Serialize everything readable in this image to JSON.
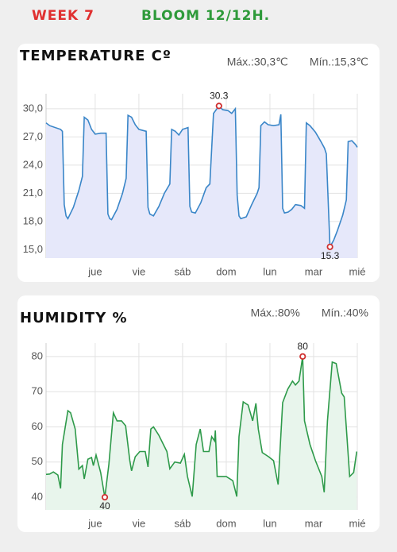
{
  "header": {
    "week": "WEEK 7",
    "stage": "BLOOM 12/12H."
  },
  "chart_data": [
    {
      "type": "line",
      "title": "TEMPERATURE Cº",
      "max_text": "Máx.:30,3℃",
      "min_text": "Mín.:15,3℃",
      "color": "#3a86c8",
      "fill_color": "#e6e8fa",
      "grid": true,
      "xlim": [
        0,
        171
      ],
      "xticks": [
        {
          "value": 27,
          "label": "jue"
        },
        {
          "value": 51,
          "label": "vie"
        },
        {
          "value": 75,
          "label": "sáb"
        },
        {
          "value": 99,
          "label": "dom"
        },
        {
          "value": 123,
          "label": "lun"
        },
        {
          "value": 147,
          "label": "mar"
        },
        {
          "value": 171,
          "label": "mié"
        }
      ],
      "ylim": [
        14.1,
        31.6
      ],
      "yticks": [
        {
          "value": 15,
          "label": "15,0"
        },
        {
          "value": 18,
          "label": "18,0"
        },
        {
          "value": 21,
          "label": "21,0"
        },
        {
          "value": 24,
          "label": "24,0"
        },
        {
          "value": 27,
          "label": "27,0"
        },
        {
          "value": 30,
          "label": "30,0"
        }
      ],
      "x": [
        0,
        2,
        8,
        9,
        10,
        11,
        12,
        15,
        18,
        20,
        21,
        23,
        25,
        27,
        30,
        33,
        34,
        35,
        36,
        39,
        42,
        44,
        45,
        47,
        49,
        51,
        55,
        56,
        57,
        59,
        62,
        65,
        68,
        69,
        71,
        73,
        75,
        78,
        79,
        80,
        82,
        85,
        88,
        90,
        92,
        95,
        97,
        100,
        102,
        104,
        105,
        106,
        107,
        110,
        113,
        116,
        117,
        118,
        120,
        122,
        125,
        128,
        129,
        130,
        131,
        133,
        135,
        137,
        140,
        142,
        143,
        145,
        148,
        151,
        153,
        154,
        156,
        158,
        160,
        163,
        165,
        166,
        168,
        170,
        171
      ],
      "values": [
        28.5,
        28.2,
        27.8,
        27.6,
        19.8,
        18.6,
        18.3,
        19.5,
        21.3,
        22.8,
        29.1,
        28.8,
        27.8,
        27.3,
        27.4,
        27.4,
        18.8,
        18.3,
        18.2,
        19.3,
        21.0,
        22.6,
        29.3,
        29.1,
        28.3,
        27.8,
        27.6,
        19.5,
        18.8,
        18.6,
        19.6,
        21.0,
        22.0,
        27.8,
        27.6,
        27.2,
        27.8,
        28.0,
        19.6,
        19.0,
        18.9,
        20.0,
        21.6,
        22.0,
        29.5,
        30.3,
        29.9,
        29.8,
        29.5,
        30.0,
        20.8,
        18.6,
        18.3,
        18.5,
        19.8,
        21.0,
        21.6,
        28.2,
        28.6,
        28.3,
        28.2,
        28.3,
        29.4,
        19.4,
        18.9,
        19.0,
        19.3,
        19.8,
        19.7,
        19.4,
        28.5,
        28.2,
        27.5,
        26.5,
        25.8,
        25.2,
        15.3,
        16.0,
        17.0,
        18.7,
        20.3,
        26.5,
        26.6,
        26.2,
        25.9
      ],
      "markers": [
        {
          "x": 95,
          "y": 30.3
        },
        {
          "x": 156,
          "y": 15.3
        }
      ]
    },
    {
      "type": "line",
      "title": "HUMIDITY %",
      "max_text": "Máx.:80%",
      "min_text": "Mín.:40%",
      "color": "#2e9a4a",
      "fill_color": "#e8f5ec",
      "grid": true,
      "xlim": [
        0,
        171
      ],
      "xticks": [
        {
          "value": 27,
          "label": "jue"
        },
        {
          "value": 51,
          "label": "vie"
        },
        {
          "value": 75,
          "label": "sáb"
        },
        {
          "value": 99,
          "label": "dom"
        },
        {
          "value": 123,
          "label": "lun"
        },
        {
          "value": 147,
          "label": "mar"
        },
        {
          "value": 171,
          "label": "mié"
        }
      ],
      "ylim": [
        36.4,
        83.8
      ],
      "yticks": [
        40,
        50,
        60,
        70,
        80
      ],
      "x": [
        0,
        2,
        4,
        6.5,
        8,
        9,
        12,
        13.5,
        16,
        18,
        20,
        21,
        23,
        25,
        26,
        27.5,
        30,
        32.3,
        34.5,
        37,
        39,
        41.5,
        43.7,
        46,
        47,
        49,
        51.5,
        54.5,
        56,
        57.6,
        59,
        62,
        66.4,
        68,
        70.7,
        73.8,
        76,
        77.7,
        80.3,
        82.5,
        84.7,
        86.5,
        89.5,
        91,
        92.6,
        93,
        94,
        99,
        102.6,
        104.8,
        106,
        108.3,
        111,
        113.5,
        115.3,
        116.6,
        118.8,
        122.3,
        125,
        127.5,
        130,
        132.8,
        135.4,
        137,
        139,
        141,
        142,
        145,
        148,
        151.5,
        152.8,
        154.6,
        157.2,
        159.4,
        162.4,
        163.8,
        166.8,
        169,
        170.7
      ],
      "values": [
        46.5,
        46.6,
        47.2,
        46.3,
        42.5,
        55,
        64.6,
        64,
        59.4,
        48,
        49,
        45.2,
        50.8,
        51.3,
        49,
        52,
        47,
        40,
        49.3,
        64,
        61.7,
        61.7,
        60.3,
        50.4,
        47.5,
        51.5,
        53,
        53,
        48.6,
        59.4,
        60,
        57.6,
        53,
        48.1,
        50,
        49.7,
        52.2,
        45.9,
        40.2,
        55,
        59.4,
        53,
        53,
        57.2,
        56,
        59,
        45.9,
        45.9,
        44.7,
        40.2,
        57.2,
        67.1,
        66.2,
        61.7,
        66.7,
        59.4,
        52.7,
        51.5,
        50.4,
        43.6,
        66.9,
        70.7,
        73,
        71.9,
        73,
        80,
        61.7,
        55,
        50.4,
        45.9,
        41.4,
        61.7,
        78.4,
        78,
        69.6,
        68.5,
        45.9,
        47,
        53
      ],
      "markers": [
        {
          "x": 141,
          "y": 80
        },
        {
          "x": 32.3,
          "y": 40
        }
      ]
    }
  ]
}
